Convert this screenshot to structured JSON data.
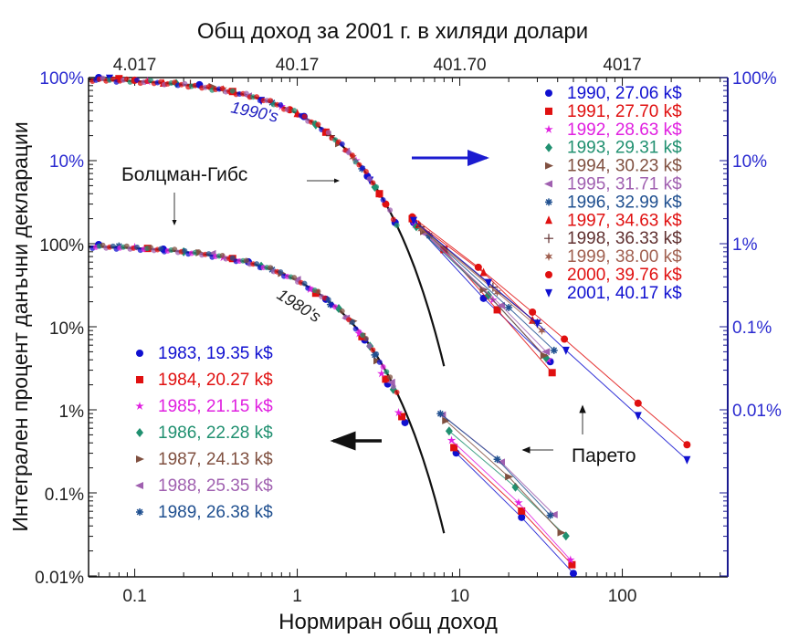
{
  "chart_data": {
    "type": "scatter",
    "title": "Общ доход за 2001 г. в хиляди долари",
    "xlabel": "Нормиран общ доход",
    "ylabel": "Интегрален процент данъчни декларации",
    "x_scale": "log",
    "xlim": [
      0.052,
      400
    ],
    "x_ticks": [
      "0.1",
      "1",
      "10",
      "100"
    ],
    "x_tick_values": [
      0.1,
      1,
      10,
      100
    ],
    "top_x_ticks": [
      "4.017",
      "40.17",
      "401.70",
      "4017"
    ],
    "top_x_tick_values": [
      0.1,
      1,
      10,
      100
    ],
    "left_y_ticks_upper": [
      "100%",
      "10%"
    ],
    "left_y_ticks_lower": [
      "100%",
      "10%",
      "1%",
      "0.1%",
      "0.01%"
    ],
    "left_y_tick_values_lower": [
      1,
      0.1,
      0.01,
      0.001,
      0.0001
    ],
    "right_y_ticks": [
      "100%",
      "10%",
      "1%",
      "0.1%",
      "0.01%"
    ],
    "right_y_tick_values": [
      1,
      0.1,
      0.01,
      0.001,
      0.0001
    ],
    "grid": false,
    "annotations": {
      "label_1990s": "1990's",
      "label_1980s": "1980's",
      "boltzmann_gibbs": "Болцман-Гибс",
      "pareto": "Парето"
    },
    "boltzmann_gibbs_fit": {
      "formula": "exp(-x)",
      "x_range": [
        0.052,
        8
      ]
    },
    "groups": [
      {
        "name": "1980s",
        "axis": "left-lower",
        "legend_position": "lower-left",
        "series": [
          {
            "year": "1983",
            "label": "1983, 19.35 k$",
            "color": "#1010d0",
            "marker": "circle",
            "body": [
              [
                0.06,
                1.0
              ],
              [
                0.15,
                0.88
              ],
              [
                0.5,
                0.62
              ],
              [
                1.5,
                0.22
              ],
              [
                2.6,
                0.071
              ],
              [
                3.6,
                0.021
              ],
              [
                4.6,
                0.0072
              ]
            ],
            "tail": [
              [
                9.5,
                0.0031
              ],
              [
                24,
                0.00052
              ],
              [
                50,
                0.00011
              ]
            ]
          },
          {
            "year": "1984",
            "label": "1984, 20.27 k$",
            "color": "#e01010",
            "marker": "square",
            "body": [
              [
                0.12,
                0.9
              ],
              [
                0.4,
                0.68
              ],
              [
                1.3,
                0.26
              ],
              [
                2.5,
                0.078
              ],
              [
                3.5,
                0.024
              ],
              [
                4.4,
                0.0085
              ]
            ],
            "tail": [
              [
                9.2,
                0.0036
              ],
              [
                24,
                0.00062
              ],
              [
                49,
                0.00014
              ]
            ]
          },
          {
            "year": "1985",
            "label": "1985, 21.15 k$",
            "color": "#e020e0",
            "marker": "star",
            "body": [
              [
                0.1,
                0.93
              ],
              [
                0.35,
                0.7
              ],
              [
                1.2,
                0.29
              ],
              [
                2.4,
                0.085
              ],
              [
                3.3,
                0.028
              ],
              [
                4.2,
                0.0095
              ]
            ],
            "tail": [
              [
                8.9,
                0.0044
              ],
              [
                23,
                0.00078
              ],
              [
                48,
                0.00016
              ]
            ]
          },
          {
            "year": "1986",
            "label": "1986, 22.28 k$",
            "color": "#209070",
            "marker": "diamond",
            "body": [
              [
                0.2,
                0.82
              ],
              [
                0.6,
                0.55
              ],
              [
                1.8,
                0.17
              ],
              [
                2.8,
                0.06
              ],
              [
                3.9,
                0.018
              ]
            ],
            "tail": [
              [
                8.6,
                0.0057
              ],
              [
                22,
                0.0012
              ],
              [
                45,
                0.00031
              ]
            ]
          },
          {
            "year": "1987",
            "label": "1987, 24.13 k$",
            "color": "#805040",
            "marker": "triangle-right",
            "body": [
              [
                0.25,
                0.8
              ],
              [
                0.8,
                0.45
              ],
              [
                2.2,
                0.12
              ],
              [
                3.1,
                0.04
              ]
            ],
            "tail": [
              [
                8.2,
                0.0076
              ],
              [
                20,
                0.0016
              ],
              [
                42,
                0.00034
              ]
            ]
          },
          {
            "year": "1988",
            "label": "1988, 25.35 k$",
            "color": "#a060b0",
            "marker": "triangle-left",
            "body": [
              [
                0.3,
                0.78
              ],
              [
                1.0,
                0.38
              ],
              [
                2.0,
                0.13
              ],
              [
                3.8,
                0.022
              ]
            ],
            "tail": [
              [
                7.8,
                0.0089
              ],
              [
                18,
                0.0024
              ],
              [
                38,
                0.00056
              ]
            ]
          },
          {
            "year": "1989",
            "label": "1989, 26.38 k$",
            "color": "#205090",
            "marker": "asterisk",
            "body": [
              [
                0.08,
                0.96
              ],
              [
                0.7,
                0.5
              ],
              [
                1.6,
                0.19
              ],
              [
                3.0,
                0.047
              ]
            ],
            "tail": [
              [
                7.6,
                0.0092
              ],
              [
                17,
                0.0026
              ],
              [
                36,
                0.00055
              ]
            ]
          }
        ]
      },
      {
        "name": "1990s",
        "axis": "right",
        "legend_position": "upper-right",
        "series": [
          {
            "year": "1990",
            "label": "1990, 27.06 k$",
            "color": "#1010d0",
            "marker": "circle",
            "body": [
              [
                0.06,
                1.0
              ],
              [
                0.25,
                0.82
              ],
              [
                1.1,
                0.34
              ],
              [
                2.7,
                0.065
              ],
              [
                4.0,
                0.018
              ]
            ],
            "tail": [
              [
                5.2,
                0.018
              ],
              [
                14,
                0.0022
              ],
              [
                36,
                0.00038
              ]
            ]
          },
          {
            "year": "1991",
            "label": "1991, 27.70 k$",
            "color": "#e01010",
            "marker": "square",
            "body": [
              [
                0.08,
                0.97
              ],
              [
                0.4,
                0.68
              ],
              [
                1.5,
                0.22
              ],
              [
                3.2,
                0.04
              ]
            ],
            "tail": [
              [
                5.1,
                0.02
              ],
              [
                8.0,
                0.0085
              ],
              [
                17,
                0.0016
              ],
              [
                37,
                0.00028
              ]
            ]
          },
          {
            "year": "1992",
            "label": "1992, 28.63 k$",
            "color": "#e020e0",
            "marker": "star",
            "body": [
              [
                0.12,
                0.9
              ],
              [
                0.8,
                0.45
              ],
              [
                2.3,
                0.1
              ]
            ],
            "tail": [
              [
                5.3,
                0.017
              ],
              [
                16,
                0.0021
              ],
              [
                35,
                0.0004
              ]
            ]
          },
          {
            "year": "1993",
            "label": "1993, 29.31 k$",
            "color": "#209070",
            "marker": "diamond",
            "body": [
              [
                0.18,
                0.85
              ],
              [
                1.3,
                0.27
              ],
              [
                3.0,
                0.048
              ]
            ],
            "tail": [
              [
                5.4,
                0.016
              ],
              [
                15,
                0.0024
              ],
              [
                34,
                0.00042
              ]
            ]
          },
          {
            "year": "1994",
            "label": "1994, 30.23 k$",
            "color": "#805040",
            "marker": "triangle-right",
            "body": [
              [
                0.3,
                0.78
              ],
              [
                1.8,
                0.16
              ]
            ],
            "tail": [
              [
                6.0,
                0.014
              ],
              [
                14,
                0.0028
              ],
              [
                33,
                0.00045
              ]
            ]
          },
          {
            "year": "1995",
            "label": "1995, 31.71 k$",
            "color": "#a060b0",
            "marker": "triangle-left",
            "body": [
              [
                0.5,
                0.6
              ],
              [
                2.0,
                0.13
              ]
            ],
            "tail": [
              [
                6.2,
                0.013
              ],
              [
                18,
                0.0018
              ],
              [
                34,
                0.0005
              ]
            ]
          },
          {
            "year": "1996",
            "label": "1996, 32.99 k$",
            "color": "#205090",
            "marker": "asterisk",
            "body": [
              [
                0.7,
                0.5
              ],
              [
                2.5,
                0.08
              ]
            ],
            "tail": [
              [
                6.5,
                0.0125
              ],
              [
                20,
                0.0017
              ],
              [
                38,
                0.00052
              ]
            ]
          },
          {
            "year": "1997",
            "label": "1997, 34.63 k$",
            "color": "#e01010",
            "marker": "triangle-up",
            "body": [
              [
                0.15,
                0.86
              ],
              [
                1.0,
                0.37
              ]
            ],
            "tail": [
              [
                5.6,
                0.017
              ],
              [
                14,
                0.0045
              ],
              [
                28,
                0.0012
              ]
            ]
          },
          {
            "year": "1998",
            "label": "1998, 36.33 k$",
            "color": "#603030",
            "marker": "plus",
            "body": [
              [
                0.22,
                0.83
              ],
              [
                1.6,
                0.2
              ]
            ],
            "tail": [
              [
                5.7,
                0.016
              ],
              [
                16,
                0.003
              ],
              [
                30,
                0.0011
              ]
            ]
          },
          {
            "year": "1999",
            "label": "1999, 38.00 k$",
            "color": "#a06050",
            "marker": "asterisk6",
            "body": [
              [
                0.35,
                0.72
              ],
              [
                2.2,
                0.11
              ]
            ],
            "tail": [
              [
                5.8,
                0.015
              ],
              [
                17,
                0.0026
              ],
              [
                32,
                0.0009
              ]
            ]
          },
          {
            "year": "2000",
            "label": "2000, 39.76 k$",
            "color": "#e01010",
            "marker": "circle",
            "body": [
              [
                0.1,
                0.93
              ],
              [
                0.9,
                0.41
              ],
              [
                3.5,
                0.03
              ]
            ],
            "tail": [
              [
                5.1,
                0.021
              ],
              [
                13,
                0.0052
              ],
              [
                28,
                0.0015
              ],
              [
                44,
                0.00071
              ],
              [
                125,
                0.00012
              ],
              [
                250,
                3.8e-05
              ]
            ]
          },
          {
            "year": "2001",
            "label": "2001, 40.17 k$",
            "color": "#1010d0",
            "marker": "triangle-down",
            "body": [
              [
                0.07,
                0.98
              ],
              [
                0.6,
                0.53
              ],
              [
                2.8,
                0.058
              ]
            ],
            "tail": [
              [
                5.2,
                0.019
              ],
              [
                15,
                0.0034
              ],
              [
                30,
                0.0011
              ],
              [
                45,
                0.00052
              ],
              [
                125,
                8.5e-05
              ],
              [
                250,
                2.5e-05
              ]
            ]
          }
        ]
      }
    ]
  }
}
